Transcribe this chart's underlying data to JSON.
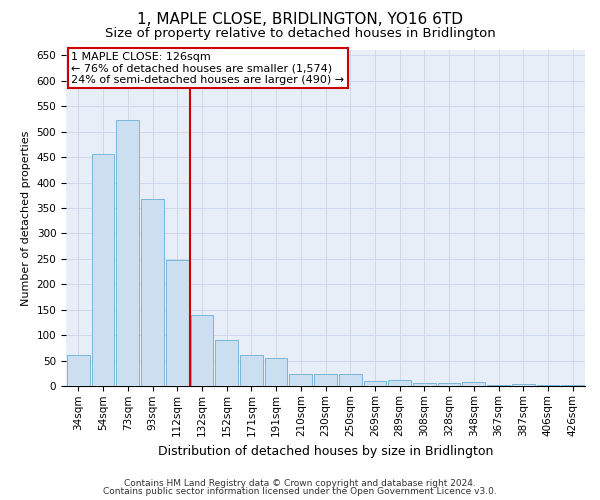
{
  "title": "1, MAPLE CLOSE, BRIDLINGTON, YO16 6TD",
  "subtitle": "Size of property relative to detached houses in Bridlington",
  "xlabel": "Distribution of detached houses by size in Bridlington",
  "ylabel": "Number of detached properties",
  "categories": [
    "34sqm",
    "54sqm",
    "73sqm",
    "93sqm",
    "112sqm",
    "132sqm",
    "152sqm",
    "171sqm",
    "191sqm",
    "210sqm",
    "230sqm",
    "250sqm",
    "269sqm",
    "289sqm",
    "308sqm",
    "328sqm",
    "348sqm",
    "367sqm",
    "387sqm",
    "406sqm",
    "426sqm"
  ],
  "values": [
    62,
    455,
    523,
    368,
    248,
    140,
    92,
    62,
    55,
    25,
    25,
    25,
    11,
    12,
    6,
    6,
    9,
    3,
    4,
    3,
    3
  ],
  "bar_color": "#ccdff0",
  "bar_edge_color": "#6aaed6",
  "vline_color": "#cc0000",
  "annotation_text_line1": "1 MAPLE CLOSE: 126sqm",
  "annotation_text_line2": "← 76% of detached houses are smaller (1,574)",
  "annotation_text_line3": "24% of semi-detached houses are larger (490) →",
  "annotation_box_color": "#ffffff",
  "annotation_box_edge_color": "#cc0000",
  "ylim": [
    0,
    660
  ],
  "yticks": [
    0,
    50,
    100,
    150,
    200,
    250,
    300,
    350,
    400,
    450,
    500,
    550,
    600,
    650
  ],
  "grid_color": "#c8d4e8",
  "background_color": "#e8eef8",
  "footnote_line1": "Contains HM Land Registry data © Crown copyright and database right 2024.",
  "footnote_line2": "Contains public sector information licensed under the Open Government Licence v3.0.",
  "title_fontsize": 11,
  "subtitle_fontsize": 9.5,
  "xlabel_fontsize": 9,
  "ylabel_fontsize": 8,
  "tick_fontsize": 7.5,
  "annot_fontsize": 8,
  "footnote_fontsize": 6.5
}
